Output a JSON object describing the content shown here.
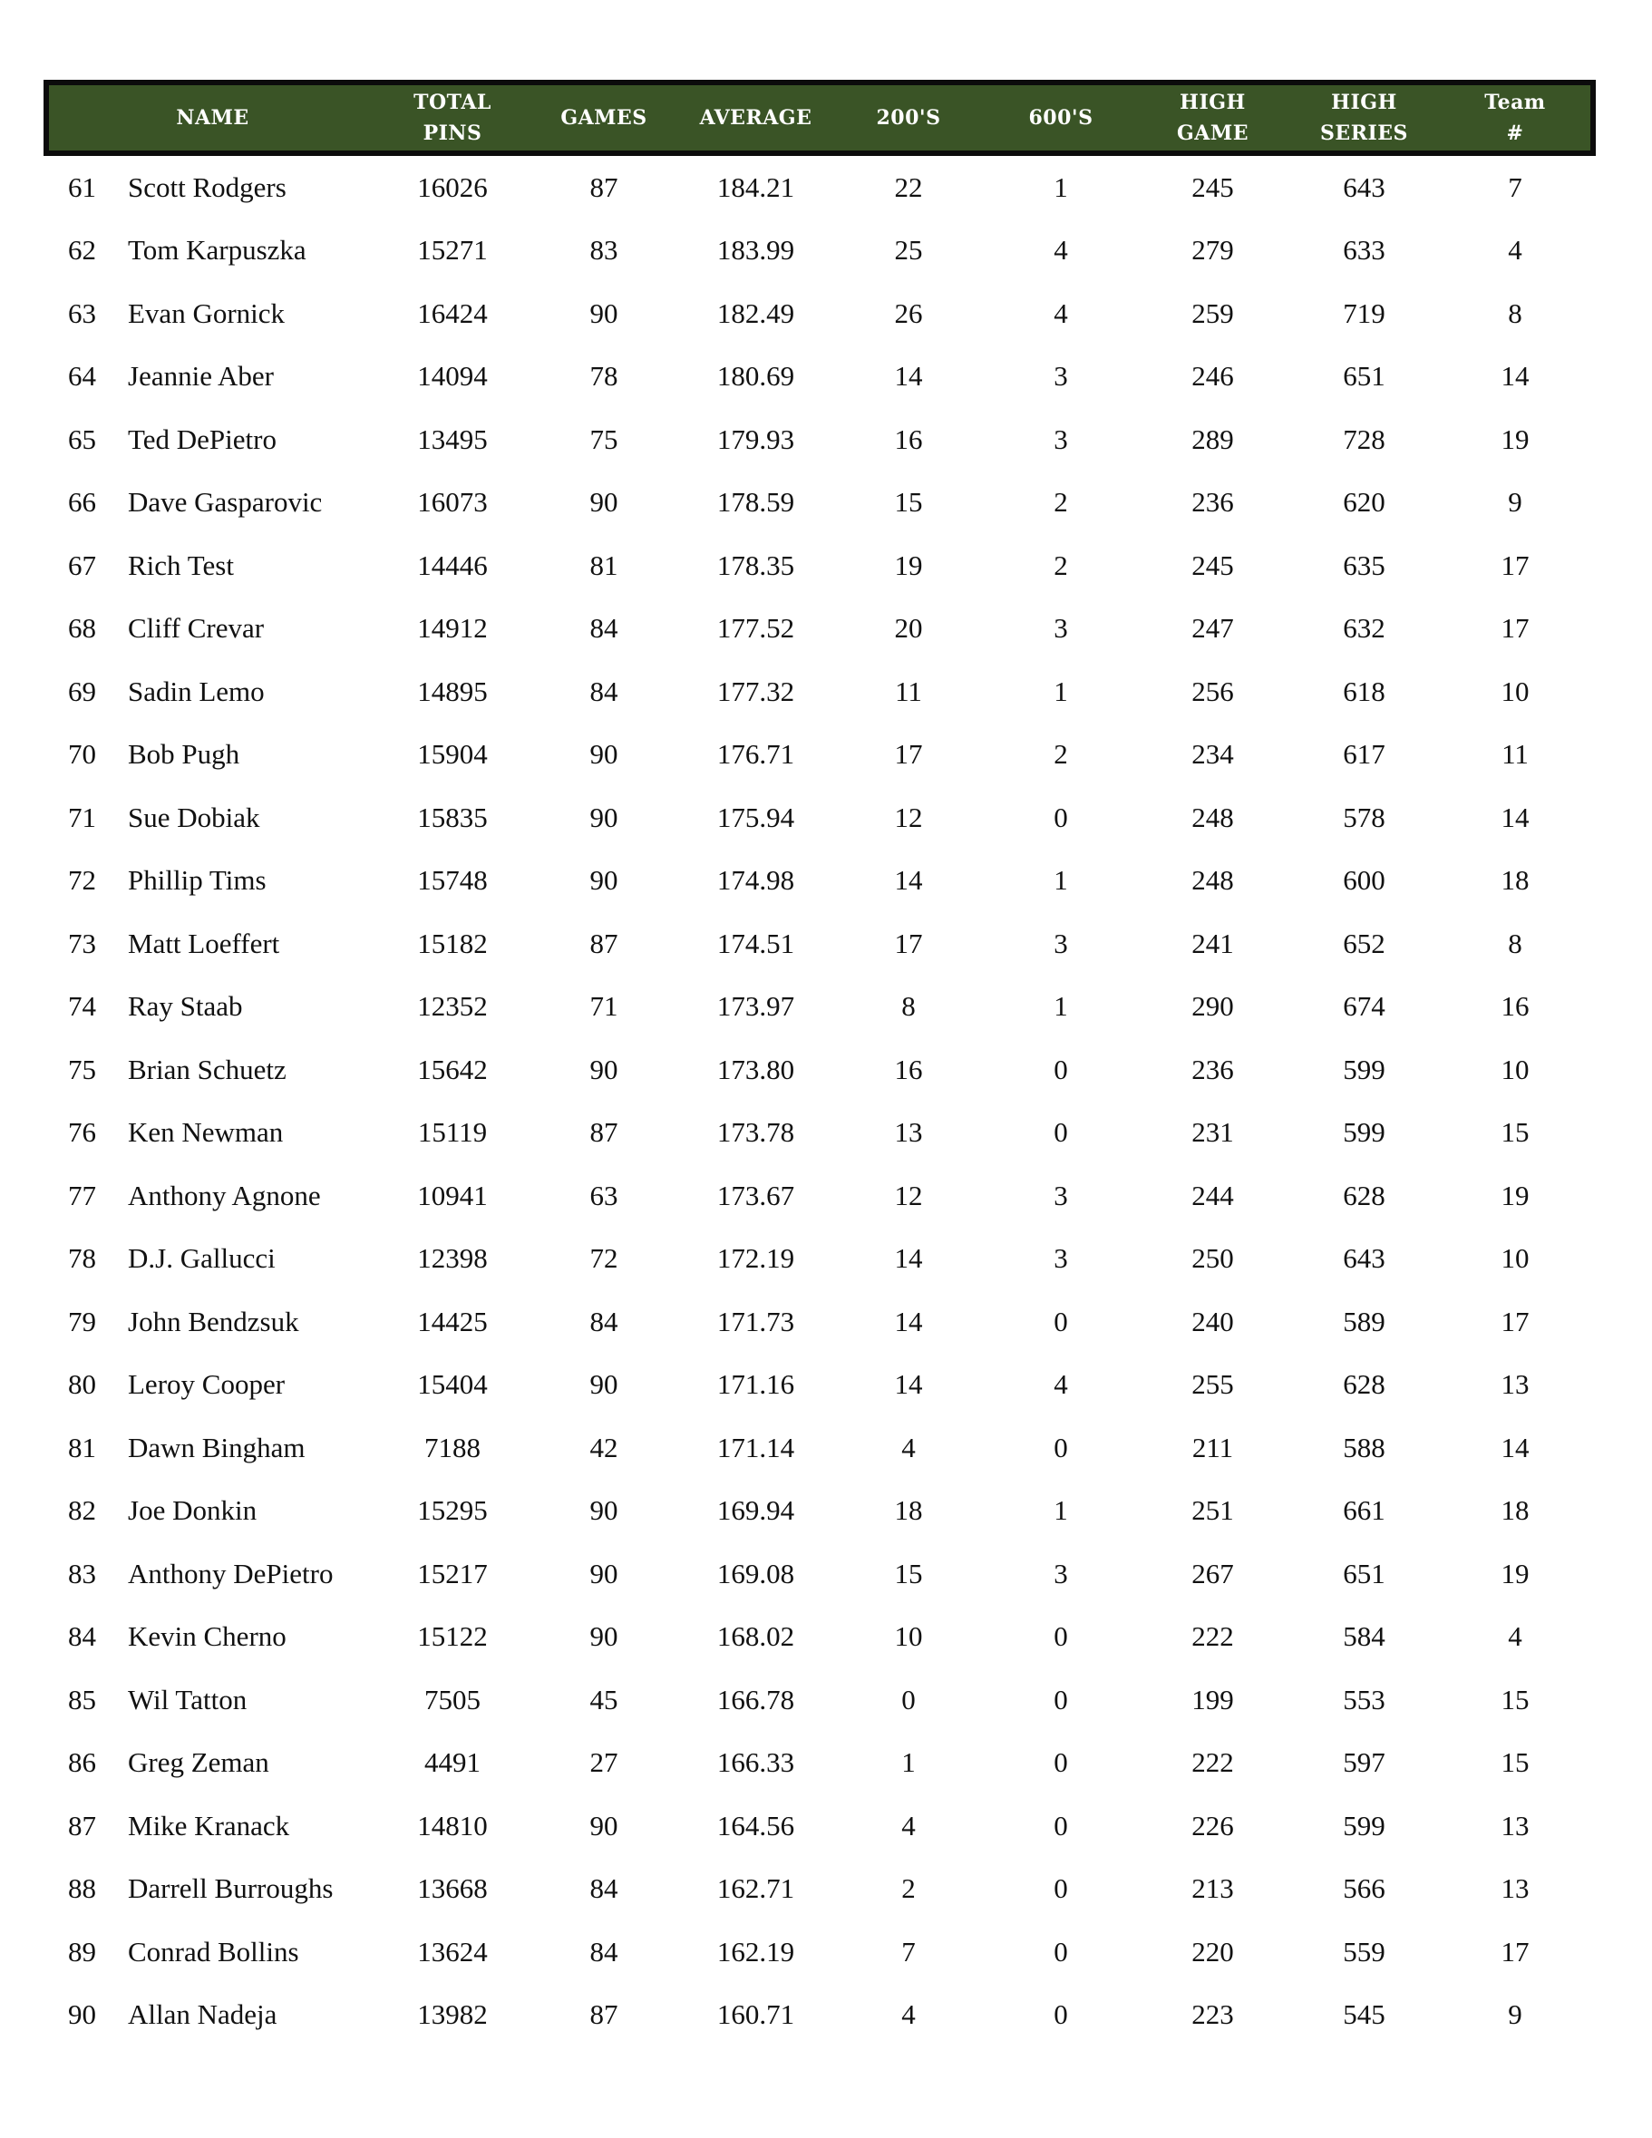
{
  "colors": {
    "header_bg": "#3a5426",
    "header_border": "#0c0c0c",
    "header_text": "#ffffff",
    "body_text": "#111111",
    "page_bg": "#ffffff"
  },
  "table": {
    "headers": {
      "name": "NAME",
      "pins1": "TOTAL",
      "pins2": "PINS",
      "games": "GAMES",
      "average": "AVERAGE",
      "h200": "200'S",
      "h600": "600'S",
      "hg1": "HIGH",
      "hg2": "GAME",
      "hs1": "HIGH",
      "hs2": "SERIES",
      "team1": "Team",
      "team2": "#"
    },
    "rows": [
      {
        "rank": "61",
        "name": "Scott Rodgers",
        "total_pins": "16026",
        "games": "87",
        "average": "184.21",
        "s200": "22",
        "s600": "1",
        "high_game": "245",
        "high_series": "643",
        "team": "7"
      },
      {
        "rank": "62",
        "name": "Tom Karpuszka",
        "total_pins": "15271",
        "games": "83",
        "average": "183.99",
        "s200": "25",
        "s600": "4",
        "high_game": "279",
        "high_series": "633",
        "team": "4"
      },
      {
        "rank": "63",
        "name": "Evan Gornick",
        "total_pins": "16424",
        "games": "90",
        "average": "182.49",
        "s200": "26",
        "s600": "4",
        "high_game": "259",
        "high_series": "719",
        "team": "8"
      },
      {
        "rank": "64",
        "name": "Jeannie Aber",
        "total_pins": "14094",
        "games": "78",
        "average": "180.69",
        "s200": "14",
        "s600": "3",
        "high_game": "246",
        "high_series": "651",
        "team": "14"
      },
      {
        "rank": "65",
        "name": "Ted DePietro",
        "total_pins": "13495",
        "games": "75",
        "average": "179.93",
        "s200": "16",
        "s600": "3",
        "high_game": "289",
        "high_series": "728",
        "team": "19"
      },
      {
        "rank": "66",
        "name": "Dave Gasparovic",
        "total_pins": "16073",
        "games": "90",
        "average": "178.59",
        "s200": "15",
        "s600": "2",
        "high_game": "236",
        "high_series": "620",
        "team": "9"
      },
      {
        "rank": "67",
        "name": "Rich Test",
        "total_pins": "14446",
        "games": "81",
        "average": "178.35",
        "s200": "19",
        "s600": "2",
        "high_game": "245",
        "high_series": "635",
        "team": "17"
      },
      {
        "rank": "68",
        "name": "Cliff Crevar",
        "total_pins": "14912",
        "games": "84",
        "average": "177.52",
        "s200": "20",
        "s600": "3",
        "high_game": "247",
        "high_series": "632",
        "team": "17"
      },
      {
        "rank": "69",
        "name": "Sadin Lemo",
        "total_pins": "14895",
        "games": "84",
        "average": "177.32",
        "s200": "11",
        "s600": "1",
        "high_game": "256",
        "high_series": "618",
        "team": "10"
      },
      {
        "rank": "70",
        "name": "Bob Pugh",
        "total_pins": "15904",
        "games": "90",
        "average": "176.71",
        "s200": "17",
        "s600": "2",
        "high_game": "234",
        "high_series": "617",
        "team": "11"
      },
      {
        "rank": "71",
        "name": "Sue Dobiak",
        "total_pins": "15835",
        "games": "90",
        "average": "175.94",
        "s200": "12",
        "s600": "0",
        "high_game": "248",
        "high_series": "578",
        "team": "14"
      },
      {
        "rank": "72",
        "name": "Phillip Tims",
        "total_pins": "15748",
        "games": "90",
        "average": "174.98",
        "s200": "14",
        "s600": "1",
        "high_game": "248",
        "high_series": "600",
        "team": "18"
      },
      {
        "rank": "73",
        "name": "Matt Loeffert",
        "total_pins": "15182",
        "games": "87",
        "average": "174.51",
        "s200": "17",
        "s600": "3",
        "high_game": "241",
        "high_series": "652",
        "team": "8"
      },
      {
        "rank": "74",
        "name": "Ray Staab",
        "total_pins": "12352",
        "games": "71",
        "average": "173.97",
        "s200": "8",
        "s600": "1",
        "high_game": "290",
        "high_series": "674",
        "team": "16"
      },
      {
        "rank": "75",
        "name": "Brian Schuetz",
        "total_pins": "15642",
        "games": "90",
        "average": "173.80",
        "s200": "16",
        "s600": "0",
        "high_game": "236",
        "high_series": "599",
        "team": "10"
      },
      {
        "rank": "76",
        "name": "Ken Newman",
        "total_pins": "15119",
        "games": "87",
        "average": "173.78",
        "s200": "13",
        "s600": "0",
        "high_game": "231",
        "high_series": "599",
        "team": "15"
      },
      {
        "rank": "77",
        "name": "Anthony Agnone",
        "total_pins": "10941",
        "games": "63",
        "average": "173.67",
        "s200": "12",
        "s600": "3",
        "high_game": "244",
        "high_series": "628",
        "team": "19"
      },
      {
        "rank": "78",
        "name": "D.J. Gallucci",
        "total_pins": "12398",
        "games": "72",
        "average": "172.19",
        "s200": "14",
        "s600": "3",
        "high_game": "250",
        "high_series": "643",
        "team": "10"
      },
      {
        "rank": "79",
        "name": "John Bendzsuk",
        "total_pins": "14425",
        "games": "84",
        "average": "171.73",
        "s200": "14",
        "s600": "0",
        "high_game": "240",
        "high_series": "589",
        "team": "17"
      },
      {
        "rank": "80",
        "name": "Leroy Cooper",
        "total_pins": "15404",
        "games": "90",
        "average": "171.16",
        "s200": "14",
        "s600": "4",
        "high_game": "255",
        "high_series": "628",
        "team": "13"
      },
      {
        "rank": "81",
        "name": "Dawn Bingham",
        "total_pins": "7188",
        "games": "42",
        "average": "171.14",
        "s200": "4",
        "s600": "0",
        "high_game": "211",
        "high_series": "588",
        "team": "14"
      },
      {
        "rank": "82",
        "name": "Joe Donkin",
        "total_pins": "15295",
        "games": "90",
        "average": "169.94",
        "s200": "18",
        "s600": "1",
        "high_game": "251",
        "high_series": "661",
        "team": "18"
      },
      {
        "rank": "83",
        "name": "Anthony DePietro",
        "total_pins": "15217",
        "games": "90",
        "average": "169.08",
        "s200": "15",
        "s600": "3",
        "high_game": "267",
        "high_series": "651",
        "team": "19"
      },
      {
        "rank": "84",
        "name": "Kevin Cherno",
        "total_pins": "15122",
        "games": "90",
        "average": "168.02",
        "s200": "10",
        "s600": "0",
        "high_game": "222",
        "high_series": "584",
        "team": "4"
      },
      {
        "rank": "85",
        "name": "Wil Tatton",
        "total_pins": "7505",
        "games": "45",
        "average": "166.78",
        "s200": "0",
        "s600": "0",
        "high_game": "199",
        "high_series": "553",
        "team": "15"
      },
      {
        "rank": "86",
        "name": "Greg Zeman",
        "total_pins": "4491",
        "games": "27",
        "average": "166.33",
        "s200": "1",
        "s600": "0",
        "high_game": "222",
        "high_series": "597",
        "team": "15"
      },
      {
        "rank": "87",
        "name": "Mike Kranack",
        "total_pins": "14810",
        "games": "90",
        "average": "164.56",
        "s200": "4",
        "s600": "0",
        "high_game": "226",
        "high_series": "599",
        "team": "13"
      },
      {
        "rank": "88",
        "name": "Darrell Burroughs",
        "total_pins": "13668",
        "games": "84",
        "average": "162.71",
        "s200": "2",
        "s600": "0",
        "high_game": "213",
        "high_series": "566",
        "team": "13"
      },
      {
        "rank": "89",
        "name": "Conrad Bollins",
        "total_pins": "13624",
        "games": "84",
        "average": "162.19",
        "s200": "7",
        "s600": "0",
        "high_game": "220",
        "high_series": "559",
        "team": "17"
      },
      {
        "rank": "90",
        "name": "Allan Nadeja",
        "total_pins": "13982",
        "games": "87",
        "average": "160.71",
        "s200": "4",
        "s600": "0",
        "high_game": "223",
        "high_series": "545",
        "team": "9"
      }
    ]
  }
}
